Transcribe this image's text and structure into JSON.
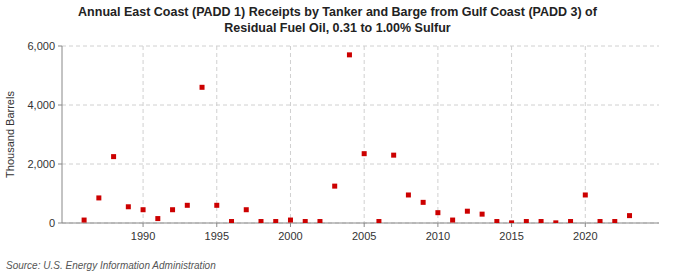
{
  "chart_data": {
    "type": "scatter",
    "title": "Annual East Coast (PADD 1) Receipts by Tanker and Barge from Gulf Coast (PADD 3) of\nResidual Fuel Oil, 0.31 to 1.00% Sulfur",
    "ylabel": "Thousand Barrels",
    "annotations": [
      "Source: U.S. Energy Information Administration"
    ],
    "x": [
      1986,
      1987,
      1988,
      1989,
      1990,
      1991,
      1992,
      1993,
      1994,
      1995,
      1996,
      1997,
      1998,
      1999,
      2000,
      2001,
      2002,
      2003,
      2004,
      2005,
      2006,
      2007,
      2008,
      2009,
      2010,
      2011,
      2012,
      2013,
      2014,
      2015,
      2016,
      2017,
      2018,
      2019,
      2020,
      2021,
      2022,
      2023
    ],
    "values": [
      100,
      850,
      2250,
      550,
      450,
      150,
      450,
      600,
      4600,
      600,
      50,
      450,
      50,
      50,
      100,
      50,
      50,
      1250,
      5700,
      2350,
      50,
      2300,
      950,
      700,
      350,
      100,
      400,
      300,
      50,
      5,
      50,
      50,
      5,
      50,
      950,
      50,
      50,
      250
    ],
    "color": "#cc0000",
    "marker": "square",
    "xlim": [
      1984.5,
      2025
    ],
    "xticks": [
      1990,
      1995,
      2000,
      2005,
      2010,
      2015,
      2020
    ],
    "ylim": [
      0,
      6000
    ],
    "yticks": [
      0,
      {
        "value": 2000,
        "label": "2,000"
      },
      {
        "value": 4000,
        "label": "4,000"
      },
      {
        "value": 6000,
        "label": "6,000"
      }
    ],
    "grid": true
  }
}
